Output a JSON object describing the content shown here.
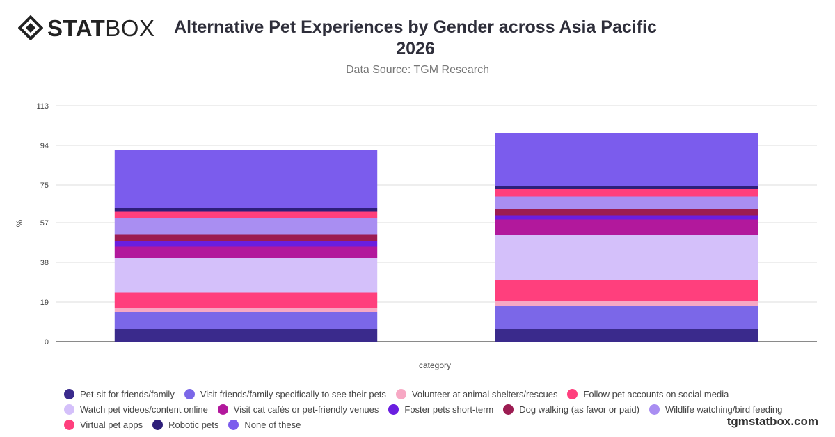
{
  "brand": {
    "logo_bold": "STAT",
    "logo_light": "BOX",
    "watermark": "tgmstatbox.com"
  },
  "header": {
    "title": "Alternative Pet Experiences by Gender across Asia Pacific 2026",
    "subtitle": "Data Source: TGM Research"
  },
  "chart_data": {
    "type": "bar",
    "stacked": true,
    "title": "Alternative Pet Experiences by Gender across Asia Pacific 2026",
    "subtitle": "Data Source: TGM Research",
    "xlabel": "category",
    "ylabel": "%",
    "ylim": [
      0,
      113
    ],
    "yticks": [
      0,
      19,
      38,
      57,
      75,
      94,
      113
    ],
    "grid": true,
    "legend_position": "bottom",
    "categories": [
      "",
      ""
    ],
    "series": [
      {
        "name": "Pet-sit for friends/family",
        "color": "#3a2a8c",
        "values": [
          6,
          6
        ]
      },
      {
        "name": "Visit friends/family specifically to see their pets",
        "color": "#7b67e8",
        "values": [
          8,
          11
        ]
      },
      {
        "name": "Volunteer at animal shelters/rescues",
        "color": "#f7a8c4",
        "values": [
          2,
          2.5
        ]
      },
      {
        "name": "Follow pet accounts on social media",
        "color": "#ff3f7d",
        "values": [
          7.5,
          10
        ]
      },
      {
        "name": "Watch pet videos/content online",
        "color": "#d4c0fa",
        "values": [
          16.5,
          21.5
        ]
      },
      {
        "name": "Visit cat cafés or pet-friendly venues",
        "color": "#b2189c",
        "values": [
          5.5,
          7.5
        ]
      },
      {
        "name": "Foster pets short-term",
        "color": "#6a1ee0",
        "values": [
          2.5,
          2
        ]
      },
      {
        "name": "Dog walking (as favor or paid)",
        "color": "#9c1c52",
        "values": [
          3.5,
          3
        ]
      },
      {
        "name": "Wildlife watching/bird feeding",
        "color": "#a98ef2",
        "values": [
          7.5,
          6
        ]
      },
      {
        "name": "Virtual pet apps",
        "color": "#ff3f7d",
        "values": [
          3.5,
          3.5
        ]
      },
      {
        "name": "Robotic pets",
        "color": "#2e1f7a",
        "values": [
          1.5,
          1.5
        ]
      },
      {
        "name": "None of these",
        "color": "#7b5ced",
        "values": [
          28,
          25.5
        ]
      }
    ]
  }
}
